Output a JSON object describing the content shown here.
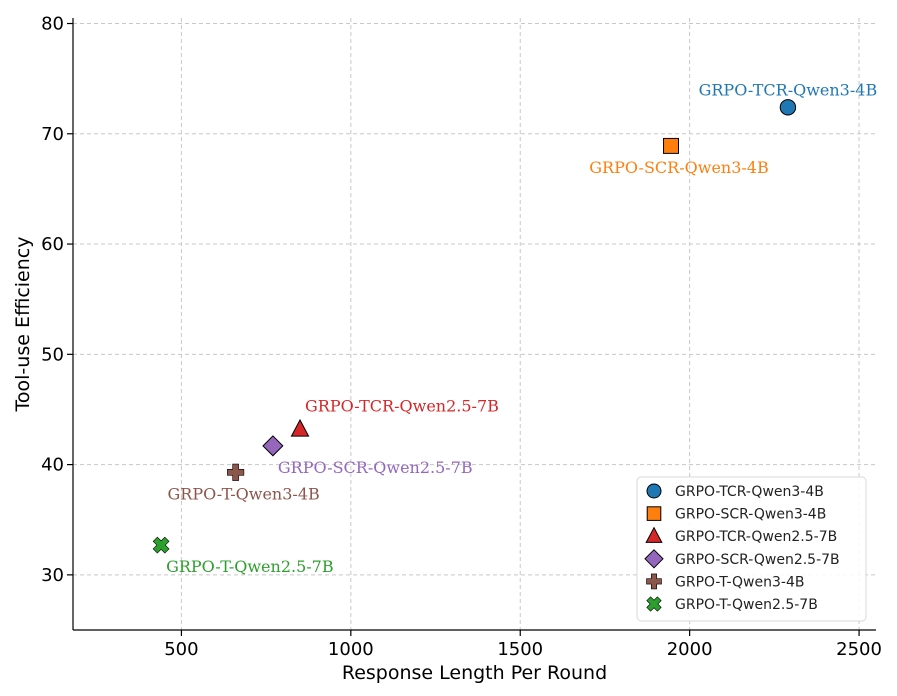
{
  "chart_data": {
    "type": "scatter",
    "title": "",
    "xlabel": "Response Length Per Round",
    "ylabel": "Tool-use Efficiency",
    "xlim": [
      180,
      2550
    ],
    "ylim": [
      25,
      80.5
    ],
    "xticks": [
      500,
      1000,
      1500,
      2000,
      2500
    ],
    "yticks": [
      30,
      40,
      50,
      60,
      70,
      80
    ],
    "grid": true,
    "legend_position": "bottom-right",
    "series": [
      {
        "name": "GRPO-TCR-Qwen3-4B",
        "x": 2290,
        "y": 72.4,
        "marker": "circle",
        "color": "#1f77b4",
        "label": "GRPO-TCR-Qwen3-4B",
        "label_pos": "above"
      },
      {
        "name": "GRPO-SCR-Qwen3-4B",
        "x": 1945,
        "y": 68.9,
        "marker": "square",
        "color": "#ff7f0e",
        "label": "GRPO-SCR-Qwen3-4B",
        "label_pos": "below"
      },
      {
        "name": "GRPO-TCR-Qwen2.5-7B",
        "x": 850,
        "y": 43.2,
        "marker": "triangle",
        "color": "#d62728",
        "label": "GRPO-TCR-Qwen2.5-7B",
        "label_pos": "above-right"
      },
      {
        "name": "GRPO-SCR-Qwen2.5-7B",
        "x": 770,
        "y": 41.7,
        "marker": "diamond",
        "color": "#9467bd",
        "label": "GRPO-SCR-Qwen2.5-7B",
        "label_pos": "below-right"
      },
      {
        "name": "GRPO-T-Qwen3-4B",
        "x": 660,
        "y": 39.3,
        "marker": "plus",
        "color": "#8c564b",
        "label": "GRPO-T-Qwen3-4B",
        "label_pos": "below"
      },
      {
        "name": "GRPO-T-Qwen2.5-7B",
        "x": 440,
        "y": 32.7,
        "marker": "x",
        "color": "#2ca02c",
        "label": "GRPO-T-Qwen2.5-7B",
        "label_pos": "below-right"
      }
    ]
  }
}
